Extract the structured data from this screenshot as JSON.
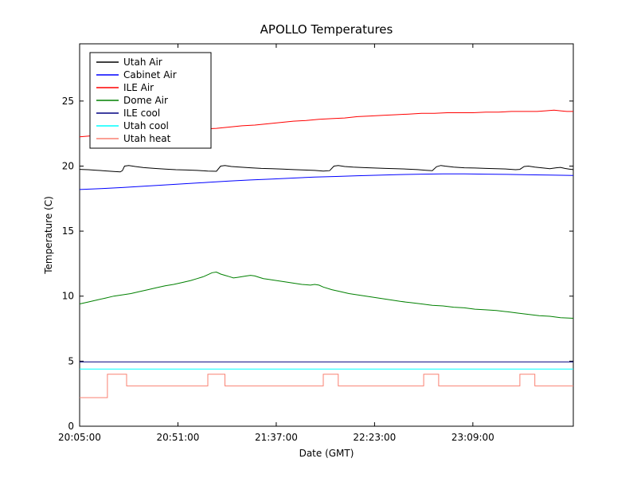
{
  "chart_data": {
    "type": "line",
    "title": "APOLLO Temperatures",
    "xlabel": "Date (GMT)",
    "ylabel": "Temperature (C)",
    "x_unit": "minutes since 20:05:00 GMT",
    "xlim": [
      0,
      231
    ],
    "ylim": [
      0,
      29.4
    ],
    "grid": false,
    "legend_position": "upper left",
    "x_ticks": [
      {
        "pos": 0,
        "label": "20:05:00"
      },
      {
        "pos": 46,
        "label": "20:51:00"
      },
      {
        "pos": 92,
        "label": "21:37:00"
      },
      {
        "pos": 138,
        "label": "22:23:00"
      },
      {
        "pos": 184,
        "label": "23:09:00"
      }
    ],
    "y_ticks": [
      {
        "pos": 0,
        "label": "0"
      },
      {
        "pos": 5,
        "label": "5"
      },
      {
        "pos": 10,
        "label": "10"
      },
      {
        "pos": 15,
        "label": "15"
      },
      {
        "pos": 20,
        "label": "20"
      },
      {
        "pos": 25,
        "label": "25"
      }
    ],
    "series": [
      {
        "name": "Utah Air",
        "color": "#000000",
        "points": [
          [
            0,
            19.75
          ],
          [
            4,
            19.72
          ],
          [
            8,
            19.68
          ],
          [
            12,
            19.63
          ],
          [
            16,
            19.58
          ],
          [
            19,
            19.55
          ],
          [
            20,
            19.65
          ],
          [
            21,
            20.0
          ],
          [
            23,
            20.05
          ],
          [
            26,
            19.97
          ],
          [
            30,
            19.88
          ],
          [
            35,
            19.82
          ],
          [
            40,
            19.77
          ],
          [
            45,
            19.72
          ],
          [
            50,
            19.7
          ],
          [
            55,
            19.67
          ],
          [
            60,
            19.62
          ],
          [
            64,
            19.6
          ],
          [
            66,
            20.0
          ],
          [
            68,
            20.05
          ],
          [
            71,
            19.97
          ],
          [
            75,
            19.92
          ],
          [
            80,
            19.87
          ],
          [
            85,
            19.82
          ],
          [
            90,
            19.8
          ],
          [
            95,
            19.77
          ],
          [
            100,
            19.73
          ],
          [
            105,
            19.7
          ],
          [
            110,
            19.67
          ],
          [
            114,
            19.62
          ],
          [
            117,
            19.65
          ],
          [
            119,
            20.0
          ],
          [
            121,
            20.05
          ],
          [
            124,
            19.97
          ],
          [
            128,
            19.92
          ],
          [
            133,
            19.88
          ],
          [
            138,
            19.85
          ],
          [
            143,
            19.82
          ],
          [
            148,
            19.8
          ],
          [
            153,
            19.77
          ],
          [
            158,
            19.73
          ],
          [
            162,
            19.68
          ],
          [
            165,
            19.65
          ],
          [
            167,
            19.95
          ],
          [
            169,
            20.05
          ],
          [
            171,
            20.0
          ],
          [
            175,
            19.92
          ],
          [
            180,
            19.87
          ],
          [
            185,
            19.85
          ],
          [
            190,
            19.82
          ],
          [
            195,
            19.8
          ],
          [
            200,
            19.77
          ],
          [
            204,
            19.72
          ],
          [
            206,
            19.75
          ],
          [
            208,
            19.97
          ],
          [
            210,
            20.0
          ],
          [
            213,
            19.92
          ],
          [
            217,
            19.85
          ],
          [
            220,
            19.8
          ],
          [
            223,
            19.87
          ],
          [
            225,
            19.9
          ],
          [
            227,
            19.82
          ],
          [
            229,
            19.77
          ],
          [
            231,
            19.73
          ]
        ]
      },
      {
        "name": "Cabinet Air",
        "color": "#0000ff",
        "points": [
          [
            0,
            18.2
          ],
          [
            10,
            18.27
          ],
          [
            20,
            18.35
          ],
          [
            30,
            18.45
          ],
          [
            40,
            18.55
          ],
          [
            50,
            18.65
          ],
          [
            60,
            18.75
          ],
          [
            70,
            18.85
          ],
          [
            80,
            18.93
          ],
          [
            90,
            19.0
          ],
          [
            100,
            19.08
          ],
          [
            110,
            19.15
          ],
          [
            120,
            19.2
          ],
          [
            130,
            19.26
          ],
          [
            140,
            19.3
          ],
          [
            150,
            19.35
          ],
          [
            160,
            19.38
          ],
          [
            170,
            19.4
          ],
          [
            180,
            19.4
          ],
          [
            190,
            19.38
          ],
          [
            200,
            19.36
          ],
          [
            210,
            19.33
          ],
          [
            220,
            19.31
          ],
          [
            231,
            19.28
          ]
        ]
      },
      {
        "name": "ILE Air",
        "color": "#ff0000",
        "points": [
          [
            0,
            22.25
          ],
          [
            5,
            22.32
          ],
          [
            10,
            22.4
          ],
          [
            15,
            22.5
          ],
          [
            20,
            22.55
          ],
          [
            25,
            22.6
          ],
          [
            30,
            22.62
          ],
          [
            35,
            22.65
          ],
          [
            40,
            22.7
          ],
          [
            46,
            22.75
          ],
          [
            52,
            22.8
          ],
          [
            58,
            22.85
          ],
          [
            64,
            22.9
          ],
          [
            70,
            23.0
          ],
          [
            76,
            23.1
          ],
          [
            82,
            23.15
          ],
          [
            88,
            23.25
          ],
          [
            94,
            23.35
          ],
          [
            100,
            23.45
          ],
          [
            106,
            23.5
          ],
          [
            112,
            23.6
          ],
          [
            118,
            23.65
          ],
          [
            124,
            23.7
          ],
          [
            130,
            23.8
          ],
          [
            136,
            23.85
          ],
          [
            142,
            23.9
          ],
          [
            148,
            23.95
          ],
          [
            154,
            24.0
          ],
          [
            160,
            24.05
          ],
          [
            166,
            24.05
          ],
          [
            172,
            24.1
          ],
          [
            178,
            24.1
          ],
          [
            184,
            24.1
          ],
          [
            190,
            24.15
          ],
          [
            196,
            24.15
          ],
          [
            202,
            24.2
          ],
          [
            208,
            24.2
          ],
          [
            214,
            24.2
          ],
          [
            218,
            24.25
          ],
          [
            222,
            24.3
          ],
          [
            225,
            24.25
          ],
          [
            228,
            24.2
          ],
          [
            231,
            24.2
          ]
        ]
      },
      {
        "name": "Dome Air",
        "color": "#008000",
        "points": [
          [
            0,
            9.4
          ],
          [
            4,
            9.55
          ],
          [
            8,
            9.7
          ],
          [
            12,
            9.85
          ],
          [
            16,
            10.0
          ],
          [
            20,
            10.1
          ],
          [
            24,
            10.2
          ],
          [
            28,
            10.35
          ],
          [
            32,
            10.5
          ],
          [
            36,
            10.65
          ],
          [
            40,
            10.8
          ],
          [
            44,
            10.9
          ],
          [
            48,
            11.05
          ],
          [
            52,
            11.2
          ],
          [
            55,
            11.35
          ],
          [
            58,
            11.5
          ],
          [
            60,
            11.65
          ],
          [
            62,
            11.8
          ],
          [
            64,
            11.85
          ],
          [
            66,
            11.7
          ],
          [
            68,
            11.6
          ],
          [
            70,
            11.5
          ],
          [
            72,
            11.4
          ],
          [
            74,
            11.45
          ],
          [
            76,
            11.5
          ],
          [
            78,
            11.55
          ],
          [
            80,
            11.6
          ],
          [
            82,
            11.55
          ],
          [
            84,
            11.45
          ],
          [
            86,
            11.35
          ],
          [
            88,
            11.3
          ],
          [
            92,
            11.2
          ],
          [
            96,
            11.1
          ],
          [
            100,
            11.0
          ],
          [
            104,
            10.9
          ],
          [
            108,
            10.85
          ],
          [
            110,
            10.9
          ],
          [
            112,
            10.85
          ],
          [
            114,
            10.7
          ],
          [
            118,
            10.5
          ],
          [
            122,
            10.35
          ],
          [
            126,
            10.2
          ],
          [
            130,
            10.1
          ],
          [
            134,
            10.0
          ],
          [
            138,
            9.9
          ],
          [
            142,
            9.8
          ],
          [
            146,
            9.7
          ],
          [
            150,
            9.6
          ],
          [
            155,
            9.5
          ],
          [
            160,
            9.4
          ],
          [
            165,
            9.3
          ],
          [
            170,
            9.25
          ],
          [
            175,
            9.15
          ],
          [
            180,
            9.1
          ],
          [
            185,
            9.0
          ],
          [
            190,
            8.95
          ],
          [
            195,
            8.9
          ],
          [
            200,
            8.8
          ],
          [
            205,
            8.7
          ],
          [
            210,
            8.6
          ],
          [
            215,
            8.5
          ],
          [
            220,
            8.45
          ],
          [
            225,
            8.35
          ],
          [
            231,
            8.3
          ]
        ]
      },
      {
        "name": "ILE cool",
        "color": "#000080",
        "points": [
          [
            0,
            4.95
          ],
          [
            231,
            4.95
          ]
        ]
      },
      {
        "name": "Utah cool",
        "color": "#00ffff",
        "points": [
          [
            0,
            4.4
          ],
          [
            231,
            4.4
          ]
        ]
      },
      {
        "name": "Utah heat",
        "color": "#fa8072",
        "points": [
          [
            0,
            2.2
          ],
          [
            13,
            2.2
          ],
          [
            13,
            4.0
          ],
          [
            22,
            4.0
          ],
          [
            22,
            3.1
          ],
          [
            60,
            3.1
          ],
          [
            60,
            4.0
          ],
          [
            68,
            4.0
          ],
          [
            68,
            3.1
          ],
          [
            114,
            3.1
          ],
          [
            114,
            4.0
          ],
          [
            121,
            4.0
          ],
          [
            121,
            3.1
          ],
          [
            161,
            3.1
          ],
          [
            161,
            4.0
          ],
          [
            168,
            4.0
          ],
          [
            168,
            3.1
          ],
          [
            206,
            3.1
          ],
          [
            206,
            4.0
          ],
          [
            213,
            4.0
          ],
          [
            213,
            3.1
          ],
          [
            231,
            3.1
          ]
        ]
      }
    ]
  }
}
